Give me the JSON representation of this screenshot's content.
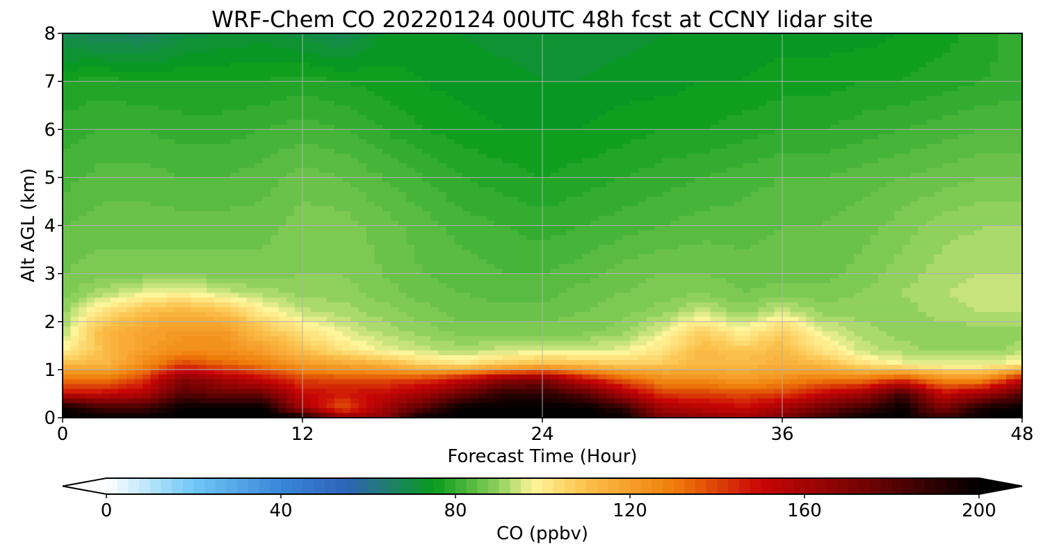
{
  "chart_data": {
    "type": "heatmap",
    "title": "WRF-Chem CO  20220124 00UTC 48h fcst at CCNY lidar site",
    "xlabel": "Forecast Time (Hour)",
    "ylabel": "Alt AGL (km)",
    "xlim": [
      0,
      48
    ],
    "ylim": [
      0,
      8
    ],
    "x_ticks": [
      "0",
      "12",
      "24",
      "36",
      "48"
    ],
    "y_ticks": [
      "0",
      "1",
      "2",
      "3",
      "4",
      "5",
      "6",
      "7",
      "8"
    ],
    "grid": true,
    "colorbar": {
      "label": "CO  (ppbv)",
      "min": 0,
      "max": 200,
      "ticks": [
        "0",
        "40",
        "80",
        "120",
        "160",
        "200"
      ],
      "extend": "both",
      "colors": [
        {
          "v": 0,
          "c": "#ffffff"
        },
        {
          "v": 20,
          "c": "#6ec8f5"
        },
        {
          "v": 40,
          "c": "#3a86d8"
        },
        {
          "v": 55,
          "c": "#2e62b8"
        },
        {
          "v": 65,
          "c": "#1f7f6a"
        },
        {
          "v": 75,
          "c": "#079a1b"
        },
        {
          "v": 90,
          "c": "#8fd15c"
        },
        {
          "v": 98,
          "c": "#fff59a"
        },
        {
          "v": 110,
          "c": "#fbc04a"
        },
        {
          "v": 130,
          "c": "#f07d0a"
        },
        {
          "v": 150,
          "c": "#c80505"
        },
        {
          "v": 175,
          "c": "#6e0303"
        },
        {
          "v": 200,
          "c": "#000000"
        }
      ]
    },
    "field": {
      "hours": [
        0,
        2,
        4,
        6,
        8,
        10,
        12,
        14,
        16,
        18,
        20,
        22,
        24,
        26,
        28,
        30,
        32,
        34,
        36,
        38,
        40,
        42,
        44,
        46,
        48
      ],
      "altitudes_km": [
        0,
        0.2,
        0.5,
        0.8,
        1.1,
        1.4,
        1.8,
        2.2,
        2.6,
        3.0,
        4.0,
        5.0,
        6.0,
        7.0,
        8.0
      ],
      "values_ppbv": [
        [
          200,
          200,
          200,
          200,
          200,
          200,
          200,
          165,
          165,
          200,
          200,
          200,
          200,
          200,
          200,
          170,
          165,
          160,
          170,
          185,
          200,
          200,
          185,
          200,
          200
        ],
        [
          200,
          185,
          185,
          200,
          200,
          200,
          160,
          135,
          160,
          180,
          200,
          200,
          200,
          200,
          190,
          160,
          155,
          150,
          160,
          175,
          185,
          200,
          170,
          195,
          200
        ],
        [
          150,
          150,
          155,
          180,
          175,
          175,
          150,
          148,
          150,
          160,
          175,
          190,
          190,
          180,
          160,
          140,
          140,
          138,
          140,
          150,
          160,
          185,
          150,
          160,
          180
        ],
        [
          130,
          130,
          140,
          170,
          160,
          150,
          140,
          138,
          138,
          140,
          150,
          165,
          170,
          150,
          135,
          125,
          125,
          120,
          125,
          130,
          130,
          140,
          125,
          125,
          150
        ],
        [
          112,
          112,
          125,
          140,
          135,
          130,
          122,
          118,
          114,
          106,
          102,
          108,
          112,
          110,
          108,
          108,
          113,
          112,
          115,
          112,
          103,
          98,
          96,
          96,
          100
        ],
        [
          98,
          110,
          120,
          125,
          125,
          120,
          110,
          102,
          97,
          94,
          92,
          94,
          95,
          95,
          96,
          102,
          112,
          108,
          112,
          102,
          94,
          92,
          90,
          90,
          92
        ],
        [
          92,
          112,
          118,
          122,
          122,
          110,
          102,
          96,
          92,
          90,
          88,
          88,
          88,
          88,
          90,
          96,
          106,
          98,
          106,
          96,
          92,
          90,
          90,
          90,
          90
        ],
        [
          90,
          102,
          110,
          114,
          110,
          100,
          94,
          92,
          90,
          88,
          86,
          86,
          86,
          87,
          88,
          90,
          94,
          90,
          95,
          90,
          90,
          90,
          92,
          93,
          93
        ],
        [
          88,
          92,
          96,
          98,
          94,
          92,
          90,
          90,
          88,
          86,
          85,
          84,
          84,
          86,
          87,
          88,
          89,
          87,
          88,
          88,
          89,
          91,
          93,
          94,
          94
        ],
        [
          87,
          88,
          88,
          88,
          88,
          88,
          89,
          89,
          87,
          85,
          84,
          83,
          83,
          84,
          86,
          87,
          87,
          86,
          86,
          86,
          88,
          90,
          92,
          93,
          93
        ],
        [
          85,
          86,
          86,
          86,
          86,
          86,
          88,
          88,
          86,
          84,
          82,
          81,
          80,
          81,
          82,
          83,
          84,
          84,
          85,
          85,
          86,
          88,
          90,
          91,
          91
        ],
        [
          82,
          84,
          84,
          83,
          83,
          84,
          86,
          85,
          83,
          81,
          79,
          78,
          77,
          78,
          79,
          80,
          81,
          82,
          83,
          83,
          84,
          85,
          86,
          87,
          87
        ],
        [
          80,
          81,
          81,
          80,
          80,
          81,
          82,
          81,
          79,
          77,
          76,
          75,
          75,
          75,
          76,
          77,
          77,
          78,
          79,
          79,
          80,
          81,
          82,
          83,
          83
        ],
        [
          77,
          78,
          77,
          77,
          77,
          77,
          78,
          77,
          76,
          75,
          74,
          74,
          73,
          73,
          74,
          74,
          75,
          75,
          76,
          76,
          77,
          77,
          78,
          79,
          80
        ],
        [
          68,
          67,
          66,
          70,
          71,
          72,
          70,
          68,
          73,
          74,
          73,
          72,
          72,
          72,
          72,
          73,
          73,
          73,
          74,
          74,
          74,
          75,
          76,
          78,
          80
        ]
      ]
    }
  }
}
